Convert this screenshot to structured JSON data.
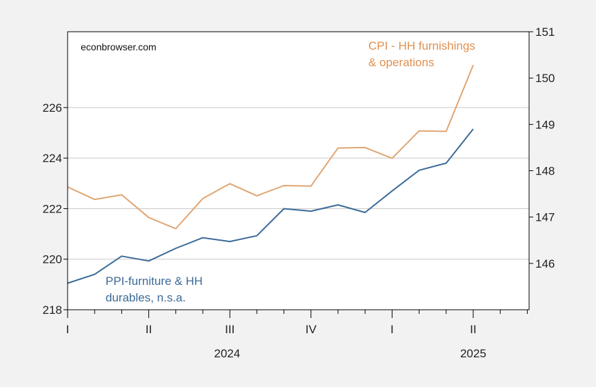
{
  "watermark": "econbrowser.com",
  "chart_data": {
    "type": "line",
    "x": [
      "2024-01",
      "2024-02",
      "2024-03",
      "2024-04",
      "2024-05",
      "2024-06",
      "2024-07",
      "2024-08",
      "2024-09",
      "2024-10",
      "2024-11",
      "2024-12",
      "2025-01",
      "2025-02",
      "2025-03",
      "2025-04"
    ],
    "quarter_labels": [
      "I",
      "II",
      "III",
      "IV",
      "I",
      "II"
    ],
    "year_labels": [
      "2024",
      "2025"
    ],
    "left_axis": {
      "ylim": [
        218,
        229
      ],
      "ticks": [
        218,
        220,
        222,
        224,
        226
      ]
    },
    "right_axis": {
      "ylim": [
        145,
        151
      ],
      "ticks": [
        146,
        147,
        148,
        149,
        150,
        151
      ]
    },
    "grid": true,
    "series": [
      {
        "name": "PPI-furniture & HH durables, n.s.a.",
        "label_lines": [
          "PPI-furniture & HH",
          "durables, n.s.a."
        ],
        "axis": "left",
        "color": "#3b6a98",
        "values": [
          219.05,
          219.4,
          220.12,
          219.93,
          220.43,
          220.85,
          220.7,
          220.93,
          222.0,
          221.9,
          222.15,
          221.85,
          222.7,
          223.52,
          223.8,
          225.15
        ]
      },
      {
        "name": "CPI - HH furnishings & operations",
        "label_lines": [
          "CPI - HH furnishings",
          "& operations"
        ],
        "axis": "right",
        "color": "#e0a572",
        "label_color": "#e09050",
        "values": [
          147.65,
          147.38,
          147.48,
          146.99,
          146.75,
          147.4,
          147.72,
          147.46,
          147.68,
          147.67,
          148.49,
          148.5,
          148.27,
          148.86,
          148.85,
          150.28
        ]
      }
    ]
  }
}
